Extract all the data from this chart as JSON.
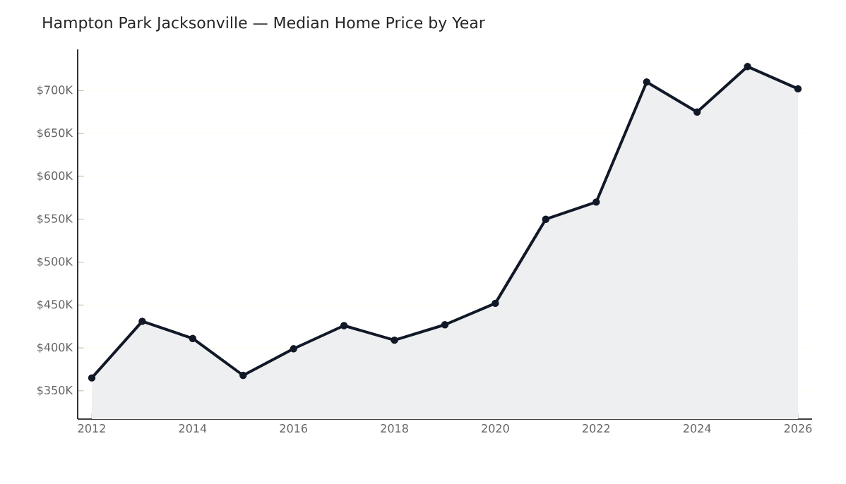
{
  "chart_data": {
    "type": "area",
    "title": "Hampton Park Jacksonville — Median Home Price by Year",
    "x": [
      2012,
      2013,
      2014,
      2015,
      2016,
      2017,
      2018,
      2019,
      2020,
      2021,
      2022,
      2023,
      2024,
      2025,
      2026
    ],
    "series": [
      {
        "color": "#111827",
        "values": [
          365,
          431,
          411,
          368,
          399,
          426,
          409,
          427,
          452,
          550,
          570,
          710,
          675,
          728,
          702
        ]
      }
    ],
    "xlim": [
      2011.72,
      2026.28
    ],
    "xticks": [
      2012,
      2014,
      2016,
      2018,
      2020,
      2022,
      2024,
      2026
    ],
    "ylim": [
      317,
      748
    ],
    "yticks": [
      {
        "value": 350,
        "label": "$350K"
      },
      {
        "value": 400,
        "label": "$400K"
      },
      {
        "value": 450,
        "label": "$450K"
      },
      {
        "value": 500,
        "label": "$500K"
      },
      {
        "value": 550,
        "label": "$550K"
      },
      {
        "value": 600,
        "label": "$600K"
      },
      {
        "value": 650,
        "label": "$650K"
      },
      {
        "value": 700,
        "label": "$700K"
      }
    ],
    "grid": "y",
    "marker": "circle",
    "line_style": "solid"
  }
}
